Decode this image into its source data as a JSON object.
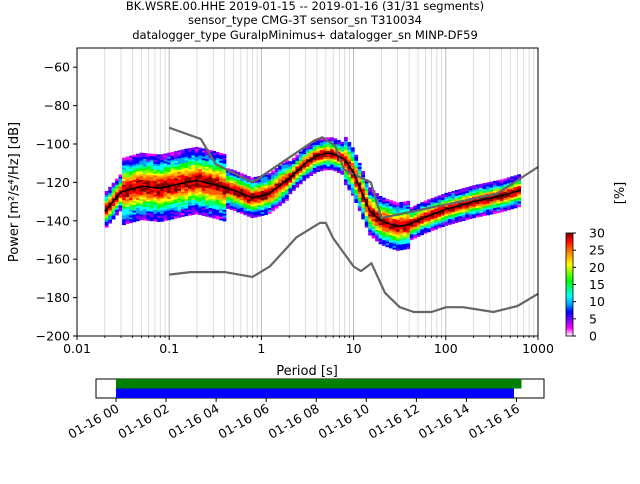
{
  "header": {
    "line1": "BK.WSRE.00.HHE   2019-01-15 -- 2019-01-16  (31/31 segments)",
    "line2": "sensor_type CMG-3T sensor_sn T310034",
    "line3": "datalogger_type GuralpMinimus+ datalogger_sn MINP-DF59"
  },
  "chart_data": [
    {
      "type": "heatmap",
      "title": "BK.WSRE.00.HHE   2019-01-15 -- 2019-01-16  (31/31 segments)",
      "xlabel": "Period [s]",
      "ylabel": "Power [m²/s⁴/Hz] [dB]",
      "xscale": "log",
      "xlim": [
        0.01,
        1000
      ],
      "ylim": [
        -200,
        -50
      ],
      "grid": "vertical, log minor",
      "x_ticks": [
        {
          "v": 0.01,
          "label": "0.01"
        },
        {
          "v": 0.1,
          "label": "0.1"
        },
        {
          "v": 1,
          "label": "1"
        },
        {
          "v": 10,
          "label": "10"
        },
        {
          "v": 100,
          "label": "100"
        },
        {
          "v": 1000,
          "label": "1000"
        }
      ],
      "y_ticks": [
        {
          "v": -60,
          "label": "−60"
        },
        {
          "v": -80,
          "label": "−80"
        },
        {
          "v": -100,
          "label": "−100"
        },
        {
          "v": -120,
          "label": "−120"
        },
        {
          "v": -140,
          "label": "−140"
        },
        {
          "v": -160,
          "label": "−160"
        },
        {
          "v": -180,
          "label": "−180"
        },
        {
          "v": -200,
          "label": "−200"
        }
      ],
      "nhnm": {
        "x": [
          0.1,
          0.22,
          0.32,
          0.8,
          3.8,
          4.6,
          6.3,
          7.9,
          15.4,
          20,
          354.8,
          1000
        ],
        "y": [
          -91.5,
          -97.4,
          -110.5,
          -120,
          -98,
          -96.5,
          -101,
          -113.5,
          -120,
          -138.5,
          -126,
          -112
        ]
      },
      "nlnm": {
        "x": [
          0.1,
          0.17,
          0.4,
          0.8,
          1.24,
          2.4,
          4.3,
          5.0,
          6.0,
          10.0,
          12.0,
          15.6,
          21.9,
          31.6,
          45.0,
          70.0,
          101.0,
          154.0,
          328.0,
          600.0,
          1000.0
        ],
        "y": [
          -168,
          -166.7,
          -166.7,
          -169.2,
          -163.7,
          -148.6,
          -141.1,
          -141.1,
          -149.0,
          -163.8,
          -166.2,
          -162.1,
          -177.5,
          -185.0,
          -187.5,
          -187.5,
          -185.0,
          -185.0,
          -187.5,
          -184.4,
          -178.0
        ]
      },
      "mean_psd": {
        "x": [
          0.02,
          0.03,
          0.05,
          0.08,
          0.1,
          0.15,
          0.2,
          0.3,
          0.5,
          0.8,
          1.2,
          2,
          3,
          4,
          5,
          6,
          8,
          10,
          15,
          20,
          30,
          40,
          60,
          100,
          200,
          400,
          650
        ],
        "y": [
          -135,
          -125,
          -122,
          -123,
          -122,
          -120,
          -119,
          -121,
          -124,
          -128,
          -126,
          -118,
          -110,
          -106,
          -105,
          -105,
          -108,
          -115,
          -135,
          -140,
          -143,
          -142,
          -138,
          -134,
          -130,
          -127,
          -124
        ]
      },
      "colorbar": {
        "label": "[%]",
        "min": 0,
        "max": 30,
        "ticks": [
          {
            "v": 0,
            "label": "0"
          },
          {
            "v": 5,
            "label": "5"
          },
          {
            "v": 10,
            "label": "10"
          },
          {
            "v": 15,
            "label": "15"
          },
          {
            "v": 20,
            "label": "20"
          },
          {
            "v": 25,
            "label": "25"
          },
          {
            "v": 30,
            "label": "30"
          }
        ],
        "colors": [
          "#ffffff",
          "#ff00ff",
          "#8000ff",
          "#0000ff",
          "#00a0ff",
          "#00ffff",
          "#00ff80",
          "#00ff00",
          "#80ff00",
          "#ffff00",
          "#ffb000",
          "#ff6000",
          "#ff0000",
          "#800000"
        ]
      }
    },
    {
      "type": "timeline",
      "x_ticks": [
        {
          "v": 0,
          "label": "01-16 00"
        },
        {
          "v": 2,
          "label": "01-16 02"
        },
        {
          "v": 4,
          "label": "01-16 04"
        },
        {
          "v": 6,
          "label": "01-16 06"
        },
        {
          "v": 8,
          "label": "01-16 08"
        },
        {
          "v": 10,
          "label": "01-16 10"
        },
        {
          "v": 12,
          "label": "01-16 12"
        },
        {
          "v": 14,
          "label": "01-16 14"
        },
        {
          "v": 16,
          "label": "01-16 16"
        }
      ],
      "bars": [
        {
          "start": 0,
          "end": 16.2,
          "color": "#008000"
        },
        {
          "start": 0,
          "end": 15.9,
          "color": "#0000ff"
        }
      ]
    }
  ]
}
